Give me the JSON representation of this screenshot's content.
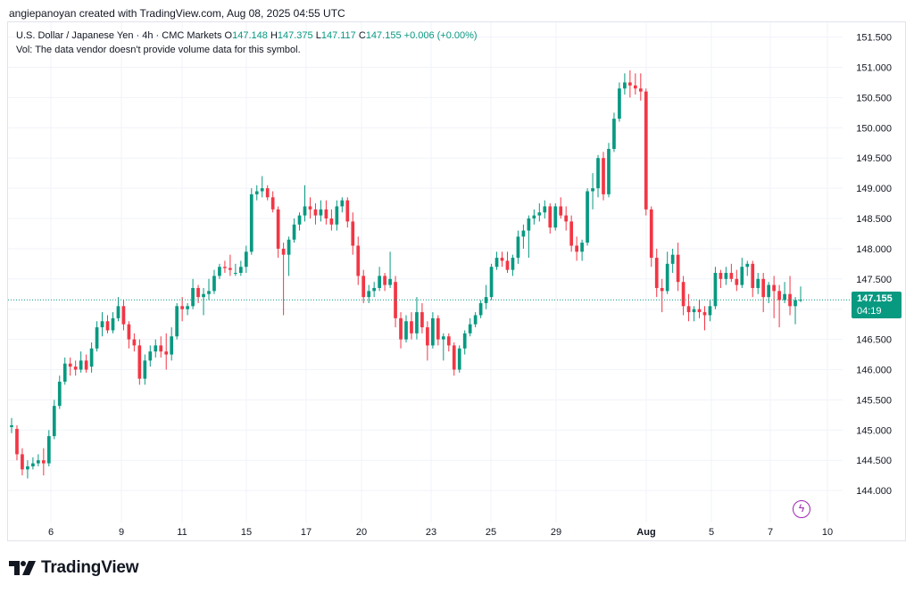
{
  "header": {
    "credit": "angiepanoyan created with TradingView.com, Aug 08, 2025 04:55 UTC"
  },
  "legend": {
    "symbol": "U.S. Dollar / Japanese Yen · 4h · CMC Markets",
    "o_label": "O",
    "o_value": "147.148",
    "h_label": "H",
    "h_value": "147.375",
    "l_label": "L",
    "l_value": "147.117",
    "c_label": "C",
    "c_value": "147.155",
    "change": "+0.006 (+0.00%)",
    "vol_note": "Vol: The data vendor doesn't provide volume data for this symbol."
  },
  "price_tag": {
    "price": "147.155",
    "countdown": "04:19"
  },
  "logo_text": "TradingView",
  "colors": {
    "up": "#089981",
    "down": "#f23645",
    "grid": "#f0f3fa",
    "price_line": "#089981",
    "flash": "#9c27b0"
  },
  "icons": {
    "flash": "lightning-icon",
    "logo": "tv-logo-icon"
  },
  "chart_data": {
    "type": "candlestick",
    "ylim": [
      143.6,
      151.5
    ],
    "y_ticks": [
      "151.500",
      "151.000",
      "150.500",
      "150.000",
      "149.500",
      "149.000",
      "148.500",
      "148.000",
      "147.500",
      "147.000",
      "146.500",
      "146.000",
      "145.500",
      "145.000",
      "144.500",
      "144.000"
    ],
    "x_ticks": [
      "6",
      "9",
      "11",
      "15",
      "17",
      "20",
      "23",
      "25",
      "29",
      "Aug",
      "5",
      "7",
      "10"
    ],
    "x_tick_bold": [
      "Aug"
    ],
    "last_price": 147.155,
    "candles": [
      {
        "o": 145.05,
        "h": 145.2,
        "l": 144.95,
        "c": 145.08
      },
      {
        "o": 145.02,
        "h": 145.08,
        "l": 144.5,
        "c": 144.6
      },
      {
        "o": 144.6,
        "h": 144.7,
        "l": 144.25,
        "c": 144.35
      },
      {
        "o": 144.35,
        "h": 144.5,
        "l": 144.2,
        "c": 144.4
      },
      {
        "o": 144.4,
        "h": 144.55,
        "l": 144.35,
        "c": 144.45
      },
      {
        "o": 144.45,
        "h": 144.6,
        "l": 144.4,
        "c": 144.5
      },
      {
        "o": 144.5,
        "h": 144.7,
        "l": 144.25,
        "c": 144.45
      },
      {
        "o": 144.45,
        "h": 145.0,
        "l": 144.4,
        "c": 144.9
      },
      {
        "o": 144.9,
        "h": 145.5,
        "l": 144.85,
        "c": 145.4
      },
      {
        "o": 145.4,
        "h": 145.9,
        "l": 145.35,
        "c": 145.8
      },
      {
        "o": 145.8,
        "h": 146.2,
        "l": 145.75,
        "c": 146.1
      },
      {
        "o": 146.1,
        "h": 146.2,
        "l": 145.9,
        "c": 146.05
      },
      {
        "o": 146.05,
        "h": 146.15,
        "l": 145.9,
        "c": 146.0
      },
      {
        "o": 146.0,
        "h": 146.3,
        "l": 145.95,
        "c": 146.15
      },
      {
        "o": 146.15,
        "h": 146.25,
        "l": 145.95,
        "c": 146.0
      },
      {
        "o": 146.05,
        "h": 146.45,
        "l": 145.95,
        "c": 146.35
      },
      {
        "o": 146.35,
        "h": 146.8,
        "l": 146.3,
        "c": 146.7
      },
      {
        "o": 146.7,
        "h": 146.95,
        "l": 146.55,
        "c": 146.8
      },
      {
        "o": 146.8,
        "h": 146.9,
        "l": 146.6,
        "c": 146.65
      },
      {
        "o": 146.65,
        "h": 146.95,
        "l": 146.6,
        "c": 146.85
      },
      {
        "o": 146.85,
        "h": 147.2,
        "l": 146.8,
        "c": 147.05
      },
      {
        "o": 147.05,
        "h": 147.15,
        "l": 146.65,
        "c": 146.75
      },
      {
        "o": 146.75,
        "h": 146.8,
        "l": 146.35,
        "c": 146.5
      },
      {
        "o": 146.5,
        "h": 146.6,
        "l": 146.3,
        "c": 146.4
      },
      {
        "o": 146.4,
        "h": 146.5,
        "l": 145.75,
        "c": 145.85
      },
      {
        "o": 145.85,
        "h": 146.25,
        "l": 145.75,
        "c": 146.15
      },
      {
        "o": 146.15,
        "h": 146.4,
        "l": 146.05,
        "c": 146.3
      },
      {
        "o": 146.3,
        "h": 146.5,
        "l": 146.2,
        "c": 146.4
      },
      {
        "o": 146.4,
        "h": 146.55,
        "l": 146.2,
        "c": 146.3
      },
      {
        "o": 146.3,
        "h": 146.6,
        "l": 146.0,
        "c": 146.25
      },
      {
        "o": 146.25,
        "h": 146.7,
        "l": 146.15,
        "c": 146.55
      },
      {
        "o": 146.55,
        "h": 147.1,
        "l": 146.5,
        "c": 147.05
      },
      {
        "o": 147.05,
        "h": 147.2,
        "l": 146.8,
        "c": 147.0
      },
      {
        "o": 147.0,
        "h": 147.1,
        "l": 146.9,
        "c": 147.05
      },
      {
        "o": 147.05,
        "h": 147.5,
        "l": 147.0,
        "c": 147.35
      },
      {
        "o": 147.35,
        "h": 147.4,
        "l": 147.1,
        "c": 147.2
      },
      {
        "o": 147.2,
        "h": 147.35,
        "l": 146.9,
        "c": 147.25
      },
      {
        "o": 147.25,
        "h": 147.5,
        "l": 147.15,
        "c": 147.3
      },
      {
        "o": 147.3,
        "h": 147.65,
        "l": 147.25,
        "c": 147.55
      },
      {
        "o": 147.55,
        "h": 147.75,
        "l": 147.5,
        "c": 147.7
      },
      {
        "o": 147.7,
        "h": 147.8,
        "l": 147.6,
        "c": 147.68
      },
      {
        "o": 147.68,
        "h": 147.9,
        "l": 147.55,
        "c": 147.65
      },
      {
        "o": 147.6,
        "h": 147.75,
        "l": 147.55,
        "c": 147.6
      },
      {
        "o": 147.6,
        "h": 147.8,
        "l": 147.55,
        "c": 147.7
      },
      {
        "o": 147.7,
        "h": 148.05,
        "l": 147.6,
        "c": 147.95
      },
      {
        "o": 147.95,
        "h": 149.0,
        "l": 147.9,
        "c": 148.9
      },
      {
        "o": 148.9,
        "h": 149.05,
        "l": 148.8,
        "c": 148.95
      },
      {
        "o": 148.95,
        "h": 149.2,
        "l": 148.85,
        "c": 149.0
      },
      {
        "o": 149.0,
        "h": 149.05,
        "l": 148.8,
        "c": 148.85
      },
      {
        "o": 148.85,
        "h": 148.95,
        "l": 148.6,
        "c": 148.65
      },
      {
        "o": 148.65,
        "h": 148.7,
        "l": 147.85,
        "c": 148.0
      },
      {
        "o": 148.0,
        "h": 148.1,
        "l": 146.9,
        "c": 147.9
      },
      {
        "o": 147.9,
        "h": 148.2,
        "l": 147.55,
        "c": 148.15
      },
      {
        "o": 148.15,
        "h": 148.5,
        "l": 148.1,
        "c": 148.4
      },
      {
        "o": 148.4,
        "h": 148.6,
        "l": 148.3,
        "c": 148.55
      },
      {
        "o": 148.55,
        "h": 149.05,
        "l": 148.45,
        "c": 148.7
      },
      {
        "o": 148.7,
        "h": 148.85,
        "l": 148.5,
        "c": 148.65
      },
      {
        "o": 148.65,
        "h": 148.75,
        "l": 148.4,
        "c": 148.55
      },
      {
        "o": 148.55,
        "h": 148.8,
        "l": 148.45,
        "c": 148.65
      },
      {
        "o": 148.65,
        "h": 148.8,
        "l": 148.4,
        "c": 148.5
      },
      {
        "o": 148.5,
        "h": 148.65,
        "l": 148.3,
        "c": 148.4
      },
      {
        "o": 148.4,
        "h": 148.8,
        "l": 148.3,
        "c": 148.7
      },
      {
        "o": 148.7,
        "h": 148.85,
        "l": 148.6,
        "c": 148.8
      },
      {
        "o": 148.8,
        "h": 148.85,
        "l": 148.35,
        "c": 148.45
      },
      {
        "o": 148.45,
        "h": 148.6,
        "l": 147.9,
        "c": 148.05
      },
      {
        "o": 148.05,
        "h": 148.2,
        "l": 147.4,
        "c": 147.55
      },
      {
        "o": 147.55,
        "h": 147.65,
        "l": 147.1,
        "c": 147.2
      },
      {
        "o": 147.2,
        "h": 147.4,
        "l": 147.1,
        "c": 147.3
      },
      {
        "o": 147.3,
        "h": 147.45,
        "l": 147.2,
        "c": 147.35
      },
      {
        "o": 147.35,
        "h": 147.7,
        "l": 147.3,
        "c": 147.55
      },
      {
        "o": 147.55,
        "h": 147.6,
        "l": 147.3,
        "c": 147.4
      },
      {
        "o": 147.4,
        "h": 147.95,
        "l": 147.35,
        "c": 147.5
      },
      {
        "o": 147.45,
        "h": 147.55,
        "l": 146.7,
        "c": 146.85
      },
      {
        "o": 146.85,
        "h": 146.95,
        "l": 146.35,
        "c": 146.5
      },
      {
        "o": 146.5,
        "h": 146.9,
        "l": 146.45,
        "c": 146.8
      },
      {
        "o": 146.8,
        "h": 146.95,
        "l": 146.5,
        "c": 146.6
      },
      {
        "o": 146.6,
        "h": 147.2,
        "l": 146.5,
        "c": 146.95
      },
      {
        "o": 146.95,
        "h": 147.1,
        "l": 146.6,
        "c": 146.7
      },
      {
        "o": 146.7,
        "h": 146.8,
        "l": 146.15,
        "c": 146.4
      },
      {
        "o": 146.4,
        "h": 146.95,
        "l": 146.35,
        "c": 146.85
      },
      {
        "o": 146.85,
        "h": 146.9,
        "l": 146.4,
        "c": 146.5
      },
      {
        "o": 146.5,
        "h": 146.6,
        "l": 146.15,
        "c": 146.55
      },
      {
        "o": 146.55,
        "h": 146.6,
        "l": 146.3,
        "c": 146.4
      },
      {
        "o": 146.4,
        "h": 146.45,
        "l": 145.9,
        "c": 146.0
      },
      {
        "o": 146.0,
        "h": 146.4,
        "l": 145.95,
        "c": 146.35
      },
      {
        "o": 146.35,
        "h": 146.65,
        "l": 146.25,
        "c": 146.6
      },
      {
        "o": 146.6,
        "h": 146.85,
        "l": 146.55,
        "c": 146.75
      },
      {
        "o": 146.75,
        "h": 146.95,
        "l": 146.7,
        "c": 146.9
      },
      {
        "o": 146.9,
        "h": 147.15,
        "l": 146.85,
        "c": 147.1
      },
      {
        "o": 147.1,
        "h": 147.4,
        "l": 147.0,
        "c": 147.2
      },
      {
        "o": 147.2,
        "h": 147.75,
        "l": 147.15,
        "c": 147.7
      },
      {
        "o": 147.7,
        "h": 147.95,
        "l": 147.65,
        "c": 147.85
      },
      {
        "o": 147.85,
        "h": 147.95,
        "l": 147.7,
        "c": 147.8
      },
      {
        "o": 147.8,
        "h": 147.95,
        "l": 147.6,
        "c": 147.65
      },
      {
        "o": 147.65,
        "h": 147.9,
        "l": 147.55,
        "c": 147.85
      },
      {
        "o": 147.85,
        "h": 148.3,
        "l": 147.75,
        "c": 148.2
      },
      {
        "o": 148.2,
        "h": 148.4,
        "l": 148.0,
        "c": 148.3
      },
      {
        "o": 148.3,
        "h": 148.55,
        "l": 147.85,
        "c": 148.5
      },
      {
        "o": 148.5,
        "h": 148.65,
        "l": 148.4,
        "c": 148.55
      },
      {
        "o": 148.55,
        "h": 148.75,
        "l": 148.45,
        "c": 148.6
      },
      {
        "o": 148.6,
        "h": 148.8,
        "l": 148.5,
        "c": 148.7
      },
      {
        "o": 148.7,
        "h": 148.75,
        "l": 148.25,
        "c": 148.35
      },
      {
        "o": 148.35,
        "h": 148.75,
        "l": 148.3,
        "c": 148.7
      },
      {
        "o": 148.7,
        "h": 148.85,
        "l": 148.5,
        "c": 148.55
      },
      {
        "o": 148.55,
        "h": 148.7,
        "l": 148.3,
        "c": 148.45
      },
      {
        "o": 148.45,
        "h": 148.55,
        "l": 147.95,
        "c": 148.05
      },
      {
        "o": 148.05,
        "h": 148.2,
        "l": 147.8,
        "c": 147.95
      },
      {
        "o": 147.95,
        "h": 148.15,
        "l": 147.8,
        "c": 148.1
      },
      {
        "o": 148.1,
        "h": 149.0,
        "l": 148.05,
        "c": 148.95
      },
      {
        "o": 148.95,
        "h": 149.25,
        "l": 148.65,
        "c": 149.0
      },
      {
        "o": 149.0,
        "h": 149.55,
        "l": 148.85,
        "c": 149.5
      },
      {
        "o": 149.5,
        "h": 149.6,
        "l": 148.8,
        "c": 148.9
      },
      {
        "o": 148.9,
        "h": 149.75,
        "l": 148.85,
        "c": 149.65
      },
      {
        "o": 149.65,
        "h": 150.25,
        "l": 149.6,
        "c": 150.15
      },
      {
        "o": 150.15,
        "h": 150.75,
        "l": 150.1,
        "c": 150.65
      },
      {
        "o": 150.65,
        "h": 150.9,
        "l": 150.55,
        "c": 150.75
      },
      {
        "o": 150.75,
        "h": 150.95,
        "l": 150.5,
        "c": 150.7
      },
      {
        "o": 150.7,
        "h": 150.9,
        "l": 150.55,
        "c": 150.65
      },
      {
        "o": 150.65,
        "h": 150.9,
        "l": 150.45,
        "c": 150.6
      },
      {
        "o": 150.6,
        "h": 150.65,
        "l": 148.55,
        "c": 148.65
      },
      {
        "o": 148.65,
        "h": 148.7,
        "l": 147.7,
        "c": 147.85
      },
      {
        "o": 147.85,
        "h": 148.0,
        "l": 147.2,
        "c": 147.35
      },
      {
        "o": 147.35,
        "h": 147.5,
        "l": 146.95,
        "c": 147.3
      },
      {
        "o": 147.3,
        "h": 147.95,
        "l": 147.25,
        "c": 147.75
      },
      {
        "o": 147.75,
        "h": 148.0,
        "l": 147.6,
        "c": 147.9
      },
      {
        "o": 147.9,
        "h": 148.1,
        "l": 147.3,
        "c": 147.45
      },
      {
        "o": 147.45,
        "h": 147.55,
        "l": 146.9,
        "c": 147.05
      },
      {
        "o": 147.05,
        "h": 147.25,
        "l": 146.8,
        "c": 146.95
      },
      {
        "o": 146.95,
        "h": 147.05,
        "l": 146.8,
        "c": 147.0
      },
      {
        "o": 147.0,
        "h": 147.15,
        "l": 146.85,
        "c": 146.95
      },
      {
        "o": 146.95,
        "h": 147.05,
        "l": 146.65,
        "c": 146.9
      },
      {
        "o": 146.9,
        "h": 147.15,
        "l": 146.8,
        "c": 147.05
      },
      {
        "o": 147.05,
        "h": 147.7,
        "l": 147.0,
        "c": 147.6
      },
      {
        "o": 147.6,
        "h": 147.65,
        "l": 147.35,
        "c": 147.5
      },
      {
        "o": 147.5,
        "h": 147.7,
        "l": 147.4,
        "c": 147.6
      },
      {
        "o": 147.6,
        "h": 147.75,
        "l": 147.45,
        "c": 147.5
      },
      {
        "o": 147.5,
        "h": 147.65,
        "l": 147.3,
        "c": 147.4
      },
      {
        "o": 147.4,
        "h": 147.85,
        "l": 147.35,
        "c": 147.7
      },
      {
        "o": 147.7,
        "h": 147.8,
        "l": 147.55,
        "c": 147.75
      },
      {
        "o": 147.75,
        "h": 147.8,
        "l": 147.2,
        "c": 147.35
      },
      {
        "o": 147.35,
        "h": 147.6,
        "l": 147.25,
        "c": 147.5
      },
      {
        "o": 147.5,
        "h": 147.6,
        "l": 146.95,
        "c": 147.2
      },
      {
        "o": 147.2,
        "h": 147.45,
        "l": 147.1,
        "c": 147.4
      },
      {
        "o": 147.4,
        "h": 147.55,
        "l": 146.85,
        "c": 147.3
      },
      {
        "o": 147.3,
        "h": 147.4,
        "l": 146.7,
        "c": 147.15
      },
      {
        "o": 147.15,
        "h": 147.45,
        "l": 147.1,
        "c": 147.25
      },
      {
        "o": 147.25,
        "h": 147.55,
        "l": 146.9,
        "c": 147.05
      },
      {
        "o": 147.05,
        "h": 147.2,
        "l": 146.75,
        "c": 147.15
      },
      {
        "o": 147.148,
        "h": 147.375,
        "l": 147.117,
        "c": 147.155
      }
    ]
  }
}
